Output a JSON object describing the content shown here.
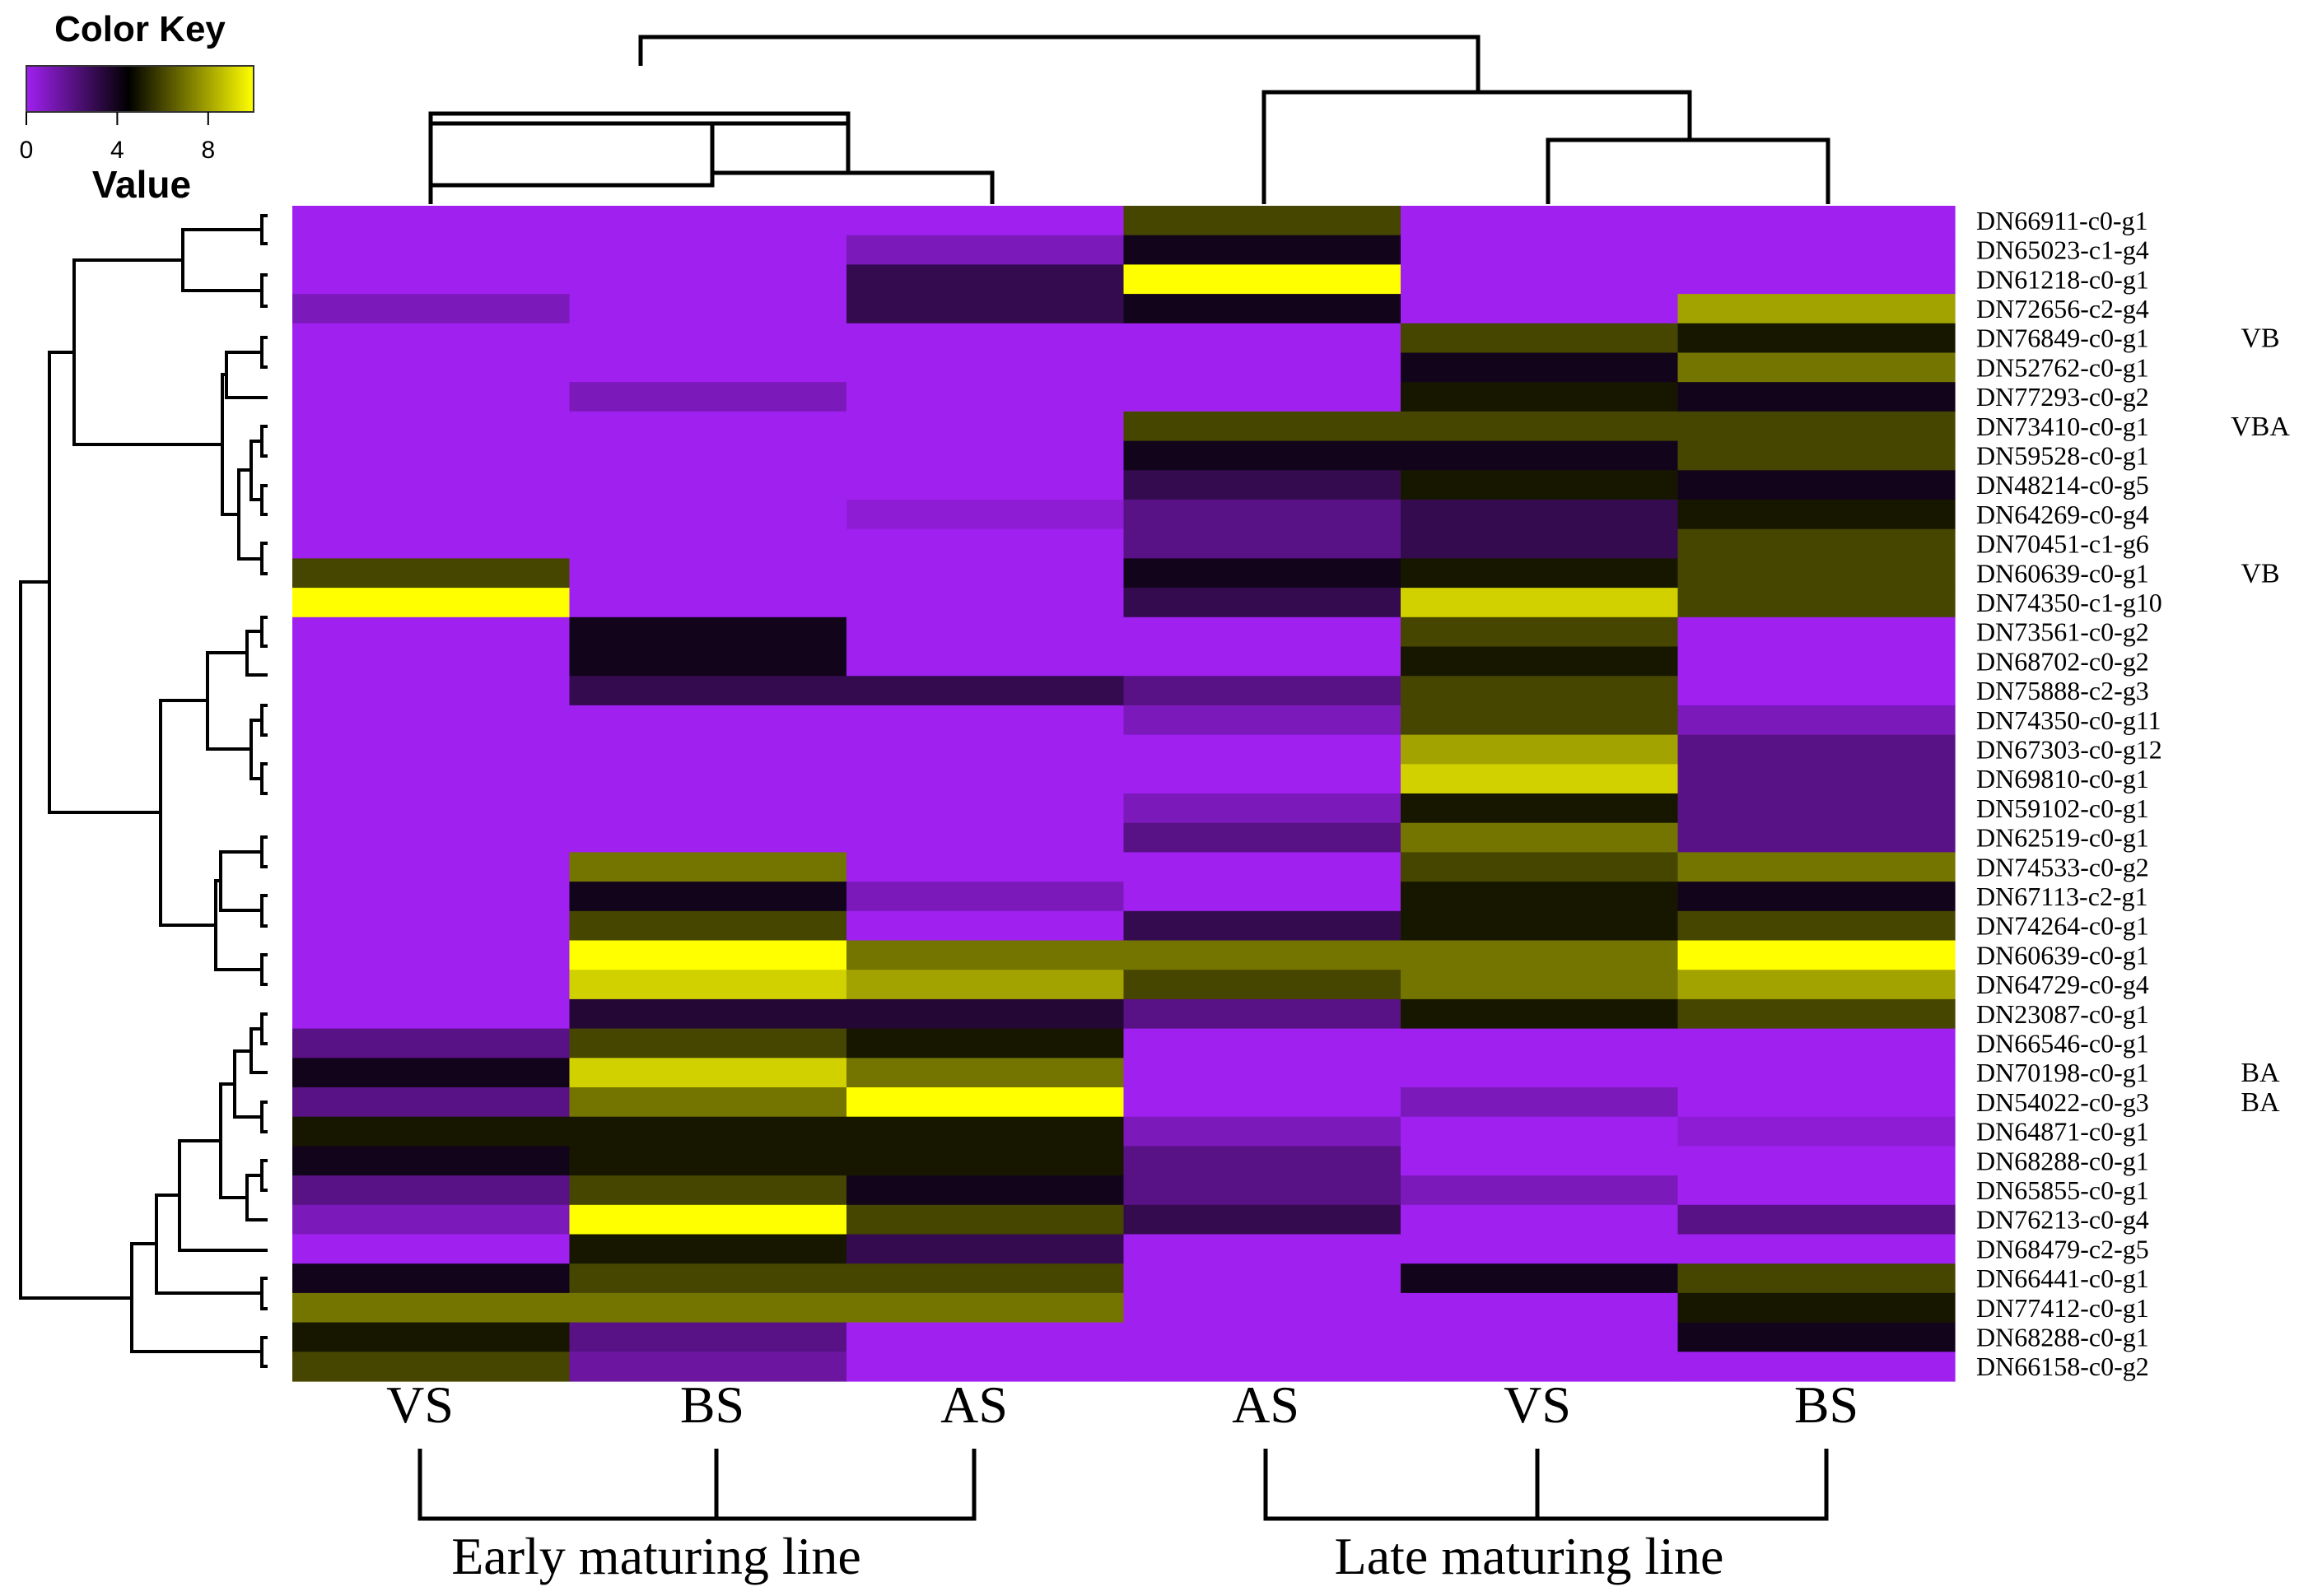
{
  "chart_data": {
    "type": "heatmap",
    "color_key": {
      "title": "Color Key",
      "label": "Value",
      "ticks": [
        "0",
        "4",
        "8"
      ],
      "tick_values": [
        0,
        4,
        8
      ],
      "range": [
        0,
        10
      ],
      "colors": [
        "#a020f0",
        "#000000",
        "#ffff00"
      ]
    },
    "columns": [
      "VS",
      "BS",
      "AS",
      "AS",
      "VS",
      "BS"
    ],
    "groups": [
      {
        "label": "Early maturing line",
        "columns": [
          0,
          1,
          2
        ]
      },
      {
        "label": "Late maturing line",
        "columns": [
          3,
          4,
          5
        ]
      }
    ],
    "rows": [
      {
        "gene": "DN66911-c0-g1",
        "tag": "",
        "values": [
          0,
          0,
          0,
          6,
          0,
          0
        ]
      },
      {
        "gene": "DN65023-c1-g4",
        "tag": "",
        "values": [
          0,
          0,
          1,
          4,
          0,
          0
        ]
      },
      {
        "gene": "DN61218-c0-g1",
        "tag": "",
        "values": [
          0,
          0,
          3,
          10,
          0,
          0
        ]
      },
      {
        "gene": "DN72656-c2-g4",
        "tag": "",
        "values": [
          1,
          0,
          3,
          4,
          0,
          8
        ]
      },
      {
        "gene": "DN76849-c0-g1",
        "tag": "VB",
        "values": [
          0,
          0,
          0,
          0,
          6,
          5
        ]
      },
      {
        "gene": "DN52762-c0-g1",
        "tag": "",
        "values": [
          0,
          0,
          0,
          0,
          4,
          7
        ]
      },
      {
        "gene": "DN77293-c0-g2",
        "tag": "",
        "values": [
          0,
          1,
          0,
          0,
          5,
          4
        ]
      },
      {
        "gene": "DN73410-c0-g1",
        "tag": "VBA",
        "values": [
          0,
          0,
          0,
          6,
          6,
          6
        ]
      },
      {
        "gene": "DN59528-c0-g1",
        "tag": "",
        "values": [
          0,
          0,
          0,
          4,
          4,
          6
        ]
      },
      {
        "gene": "DN48214-c0-g5",
        "tag": "",
        "values": [
          0,
          0,
          0,
          3,
          5,
          4
        ]
      },
      {
        "gene": "DN64269-c0-g4",
        "tag": "",
        "values": [
          0,
          0,
          0.5,
          2,
          3,
          5
        ]
      },
      {
        "gene": "DN70451-c1-g6",
        "tag": "",
        "values": [
          0,
          0,
          0,
          2,
          3,
          6
        ]
      },
      {
        "gene": "DN60639-c0-g1",
        "tag": "VB",
        "values": [
          6,
          0,
          0,
          4,
          5,
          6
        ]
      },
      {
        "gene": "DN74350-c1-g10",
        "tag": "",
        "values": [
          10,
          0,
          0,
          3,
          9,
          6
        ]
      },
      {
        "gene": "DN73561-c0-g2",
        "tag": "",
        "values": [
          0,
          4,
          0,
          0,
          6,
          0
        ]
      },
      {
        "gene": "DN68702-c0-g2",
        "tag": "",
        "values": [
          0,
          4,
          0,
          0,
          5,
          0
        ]
      },
      {
        "gene": "DN75888-c2-g3",
        "tag": "",
        "values": [
          0,
          3,
          3,
          2,
          6,
          0
        ]
      },
      {
        "gene": "DN74350-c0-g11",
        "tag": "",
        "values": [
          0,
          0,
          0,
          1,
          6,
          1
        ]
      },
      {
        "gene": "DN67303-c0-g12",
        "tag": "",
        "values": [
          0,
          0,
          0,
          0,
          8,
          2
        ]
      },
      {
        "gene": "DN69810-c0-g1",
        "tag": "",
        "values": [
          0,
          0,
          0,
          0,
          9,
          2
        ]
      },
      {
        "gene": "DN59102-c0-g1",
        "tag": "",
        "values": [
          0,
          0,
          0,
          1,
          5,
          2
        ]
      },
      {
        "gene": "DN62519-c0-g1",
        "tag": "",
        "values": [
          0,
          0,
          0,
          2,
          7,
          2
        ]
      },
      {
        "gene": "DN74533-c0-g2",
        "tag": "",
        "values": [
          0,
          7,
          0,
          0,
          6,
          7
        ]
      },
      {
        "gene": "DN67113-c2-g1",
        "tag": "",
        "values": [
          0,
          4,
          1,
          0,
          5,
          4
        ]
      },
      {
        "gene": "DN74264-c0-g1",
        "tag": "",
        "values": [
          0,
          6,
          0,
          3,
          5,
          6
        ]
      },
      {
        "gene": "DN60639-c0-g1",
        "tag": "",
        "values": [
          0,
          10,
          7,
          7,
          7,
          10
        ]
      },
      {
        "gene": "DN64729-c0-g4",
        "tag": "",
        "values": [
          0,
          9,
          8,
          6,
          7,
          8
        ]
      },
      {
        "gene": "DN23087-c0-g1",
        "tag": "",
        "values": [
          0,
          3.5,
          3.5,
          2,
          5,
          6
        ]
      },
      {
        "gene": "DN66546-c0-g1",
        "tag": "",
        "values": [
          2,
          6,
          5,
          0,
          0,
          0
        ]
      },
      {
        "gene": "DN70198-c0-g1",
        "tag": "BA",
        "values": [
          4,
          9,
          7,
          0,
          0,
          0
        ]
      },
      {
        "gene": "DN54022-c0-g3",
        "tag": "BA",
        "values": [
          2,
          7,
          10,
          0,
          1,
          0
        ]
      },
      {
        "gene": "DN64871-c0-g1",
        "tag": "",
        "values": [
          5,
          5,
          5,
          1,
          0,
          0.5
        ]
      },
      {
        "gene": "DN68288-c0-g1",
        "tag": "",
        "values": [
          4,
          5,
          5,
          2,
          0,
          0
        ]
      },
      {
        "gene": "DN65855-c0-g1",
        "tag": "",
        "values": [
          2,
          6,
          4,
          2,
          1,
          0
        ]
      },
      {
        "gene": "DN76213-c0-g4",
        "tag": "",
        "values": [
          1,
          10,
          6,
          3,
          0,
          2
        ]
      },
      {
        "gene": "DN68479-c2-g5",
        "tag": "",
        "values": [
          0,
          5,
          3,
          0,
          0,
          0
        ]
      },
      {
        "gene": "DN66441-c0-g1",
        "tag": "",
        "values": [
          4,
          6,
          6,
          0,
          4,
          6
        ]
      },
      {
        "gene": "DN77412-c0-g1",
        "tag": "",
        "values": [
          7,
          7,
          7,
          0,
          0,
          5
        ]
      },
      {
        "gene": "DN68288-c0-g1",
        "tag": "",
        "values": [
          5,
          2,
          0,
          0,
          0,
          4
        ]
      },
      {
        "gene": "DN66158-c0-g2",
        "tag": "",
        "values": [
          6,
          1.5,
          0,
          0,
          0,
          0
        ]
      }
    ]
  }
}
